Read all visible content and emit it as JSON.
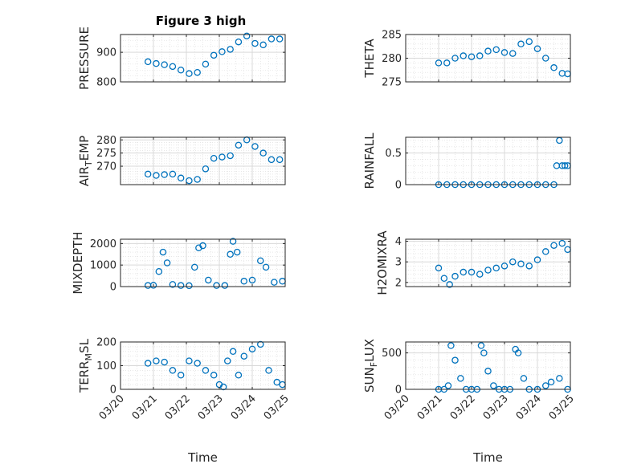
{
  "title": "Figure 3 high",
  "colors": {
    "marker": "#0072BD",
    "axis": "#262626",
    "grid": "#d9d9d9",
    "background": "#ffffff"
  },
  "chart_data": [
    {
      "type": "scatter",
      "ylabel": "PRESSURE",
      "xlim": [
        "03/20",
        "03/25"
      ],
      "ylim": [
        800,
        960
      ],
      "yticks": [
        800,
        900
      ],
      "grid": true,
      "minor_grid": true,
      "marker": "open-circle",
      "x": [
        "03/20 20:00",
        "03/21 02:00",
        "03/21 08:00",
        "03/21 14:00",
        "03/21 20:00",
        "03/22 02:00",
        "03/22 08:00",
        "03/22 14:00",
        "03/22 20:00",
        "03/23 02:00",
        "03/23 08:00",
        "03/23 14:00",
        "03/23 20:00",
        "03/24 02:00",
        "03/24 08:00",
        "03/24 14:00",
        "03/24 20:00"
      ],
      "y": [
        868,
        862,
        858,
        852,
        840,
        828,
        832,
        860,
        890,
        902,
        910,
        935,
        955,
        930,
        925,
        945,
        945
      ]
    },
    {
      "type": "scatter",
      "ylabel": "THETA",
      "xlim": [
        "03/20",
        "03/25"
      ],
      "ylim": [
        275,
        285
      ],
      "yticks": [
        275,
        280,
        285
      ],
      "grid": true,
      "minor_grid": true,
      "marker": "open-circle",
      "x": [
        "03/21 00:00",
        "03/21 06:00",
        "03/21 12:00",
        "03/21 18:00",
        "03/22 00:00",
        "03/22 06:00",
        "03/22 12:00",
        "03/22 18:00",
        "03/23 00:00",
        "03/23 06:00",
        "03/23 12:00",
        "03/23 18:00",
        "03/24 00:00",
        "03/24 06:00",
        "03/24 12:00",
        "03/24 18:00",
        "03/24 22:00"
      ],
      "y": [
        279,
        279,
        280,
        280.5,
        280.3,
        280.5,
        281.5,
        281.8,
        281.2,
        281,
        283,
        283.5,
        282,
        280,
        278,
        276.8,
        276.7
      ]
    },
    {
      "type": "scatter",
      "ylabel": "AIR_TEMP",
      "xlim": [
        "03/20",
        "03/25"
      ],
      "ylim": [
        263,
        281
      ],
      "yticks": [
        270,
        275,
        280
      ],
      "grid": true,
      "minor_grid": true,
      "marker": "open-circle",
      "x": [
        "03/20 20:00",
        "03/21 02:00",
        "03/21 08:00",
        "03/21 14:00",
        "03/21 20:00",
        "03/22 02:00",
        "03/22 08:00",
        "03/22 14:00",
        "03/22 20:00",
        "03/23 02:00",
        "03/23 08:00",
        "03/23 14:00",
        "03/23 20:00",
        "03/24 02:00",
        "03/24 08:00",
        "03/24 14:00",
        "03/24 20:00"
      ],
      "y": [
        267,
        266.5,
        266.8,
        267,
        265.5,
        264.5,
        265,
        269,
        273,
        273.5,
        274,
        278,
        280,
        277.5,
        275,
        272.5,
        272.5
      ]
    },
    {
      "type": "scatter",
      "ylabel": "RAINFALL",
      "xlim": [
        "03/20",
        "03/25"
      ],
      "ylim": [
        0,
        0.75
      ],
      "yticks": [
        0,
        0.5
      ],
      "grid": true,
      "minor_grid": true,
      "marker": "open-circle",
      "x": [
        "03/21 00:00",
        "03/21 06:00",
        "03/21 12:00",
        "03/21 18:00",
        "03/22 00:00",
        "03/22 06:00",
        "03/22 12:00",
        "03/22 18:00",
        "03/23 00:00",
        "03/23 06:00",
        "03/23 12:00",
        "03/23 18:00",
        "03/24 00:00",
        "03/24 06:00",
        "03/24 12:00",
        "03/24 14:00",
        "03/24 16:00",
        "03/24 18:00",
        "03/24 20:00",
        "03/24 22:00"
      ],
      "y": [
        0,
        0,
        0,
        0,
        0,
        0,
        0,
        0,
        0,
        0,
        0,
        0,
        0,
        0,
        0,
        0.3,
        0.7,
        0.3,
        0.3,
        0.3
      ]
    },
    {
      "type": "scatter",
      "ylabel": "MIXDEPTH",
      "xlim": [
        "03/20",
        "03/25"
      ],
      "ylim": [
        0,
        2200
      ],
      "yticks": [
        0,
        1000,
        2000
      ],
      "grid": true,
      "minor_grid": true,
      "marker": "open-circle",
      "x": [
        "03/20 20:00",
        "03/21 00:00",
        "03/21 04:00",
        "03/21 07:00",
        "03/21 10:00",
        "03/21 14:00",
        "03/21 20:00",
        "03/22 02:00",
        "03/22 06:00",
        "03/22 09:00",
        "03/22 12:00",
        "03/22 16:00",
        "03/22 22:00",
        "03/23 04:00",
        "03/23 08:00",
        "03/23 10:00",
        "03/23 13:00",
        "03/23 18:00",
        "03/24 00:00",
        "03/24 06:00",
        "03/24 10:00",
        "03/24 16:00",
        "03/24 22:00"
      ],
      "y": [
        50,
        60,
        700,
        1600,
        1100,
        100,
        50,
        40,
        900,
        1800,
        1900,
        300,
        50,
        50,
        1500,
        2100,
        1600,
        250,
        300,
        1200,
        900,
        200,
        250
      ]
    },
    {
      "type": "scatter",
      "ylabel": "H2OMIXRA",
      "xlim": [
        "03/20",
        "03/25"
      ],
      "ylim": [
        1.8,
        4.1
      ],
      "yticks": [
        2,
        3,
        4
      ],
      "grid": true,
      "minor_grid": true,
      "marker": "open-circle",
      "x": [
        "03/21 00:00",
        "03/21 04:00",
        "03/21 08:00",
        "03/21 12:00",
        "03/21 18:00",
        "03/22 00:00",
        "03/22 06:00",
        "03/22 12:00",
        "03/22 18:00",
        "03/23 00:00",
        "03/23 06:00",
        "03/23 12:00",
        "03/23 18:00",
        "03/24 00:00",
        "03/24 06:00",
        "03/24 12:00",
        "03/24 18:00",
        "03/24 22:00"
      ],
      "y": [
        2.7,
        2.2,
        1.9,
        2.3,
        2.5,
        2.5,
        2.4,
        2.6,
        2.7,
        2.8,
        3,
        2.9,
        2.8,
        3.1,
        3.5,
        3.8,
        3.9,
        3.6
      ]
    },
    {
      "type": "scatter",
      "ylabel": "TERR_MSL",
      "xlim": [
        "03/20",
        "03/25"
      ],
      "ylim": [
        0,
        200
      ],
      "yticks": [
        0,
        100,
        200
      ],
      "grid": true,
      "minor_grid": true,
      "marker": "open-circle",
      "x": [
        "03/20 20:00",
        "03/21 02:00",
        "03/21 08:00",
        "03/21 14:00",
        "03/21 20:00",
        "03/22 02:00",
        "03/22 08:00",
        "03/22 14:00",
        "03/22 20:00",
        "03/23 00:00",
        "03/23 03:00",
        "03/23 06:00",
        "03/23 10:00",
        "03/23 14:00",
        "03/23 18:00",
        "03/24 00:00",
        "03/24 06:00",
        "03/24 12:00",
        "03/24 18:00",
        "03/24 22:00"
      ],
      "y": [
        110,
        120,
        115,
        80,
        60,
        120,
        110,
        80,
        60,
        20,
        10,
        120,
        160,
        60,
        140,
        170,
        190,
        80,
        30,
        20
      ]
    },
    {
      "type": "scatter",
      "ylabel": "SUN_FLUX",
      "xlim": [
        "03/20",
        "03/25"
      ],
      "ylim": [
        0,
        650
      ],
      "yticks": [
        0,
        500
      ],
      "grid": true,
      "minor_grid": true,
      "marker": "open-circle",
      "x": [
        "03/21 00:00",
        "03/21 04:00",
        "03/21 07:00",
        "03/21 09:00",
        "03/21 12:00",
        "03/21 16:00",
        "03/21 20:00",
        "03/22 00:00",
        "03/22 04:00",
        "03/22 07:00",
        "03/22 09:00",
        "03/22 12:00",
        "03/22 16:00",
        "03/22 20:00",
        "03/23 00:00",
        "03/23 04:00",
        "03/23 08:00",
        "03/23 10:00",
        "03/23 14:00",
        "03/23 18:00",
        "03/24 00:00",
        "03/24 06:00",
        "03/24 10:00",
        "03/24 16:00",
        "03/24 22:00"
      ],
      "y": [
        0,
        0,
        50,
        600,
        400,
        150,
        0,
        0,
        0,
        600,
        500,
        250,
        50,
        0,
        0,
        0,
        550,
        500,
        150,
        0,
        0,
        50,
        100,
        150,
        0
      ]
    }
  ],
  "xticks": [
    "03/20",
    "03/21",
    "03/22",
    "03/23",
    "03/24",
    "03/25"
  ],
  "xlabel": "Time"
}
